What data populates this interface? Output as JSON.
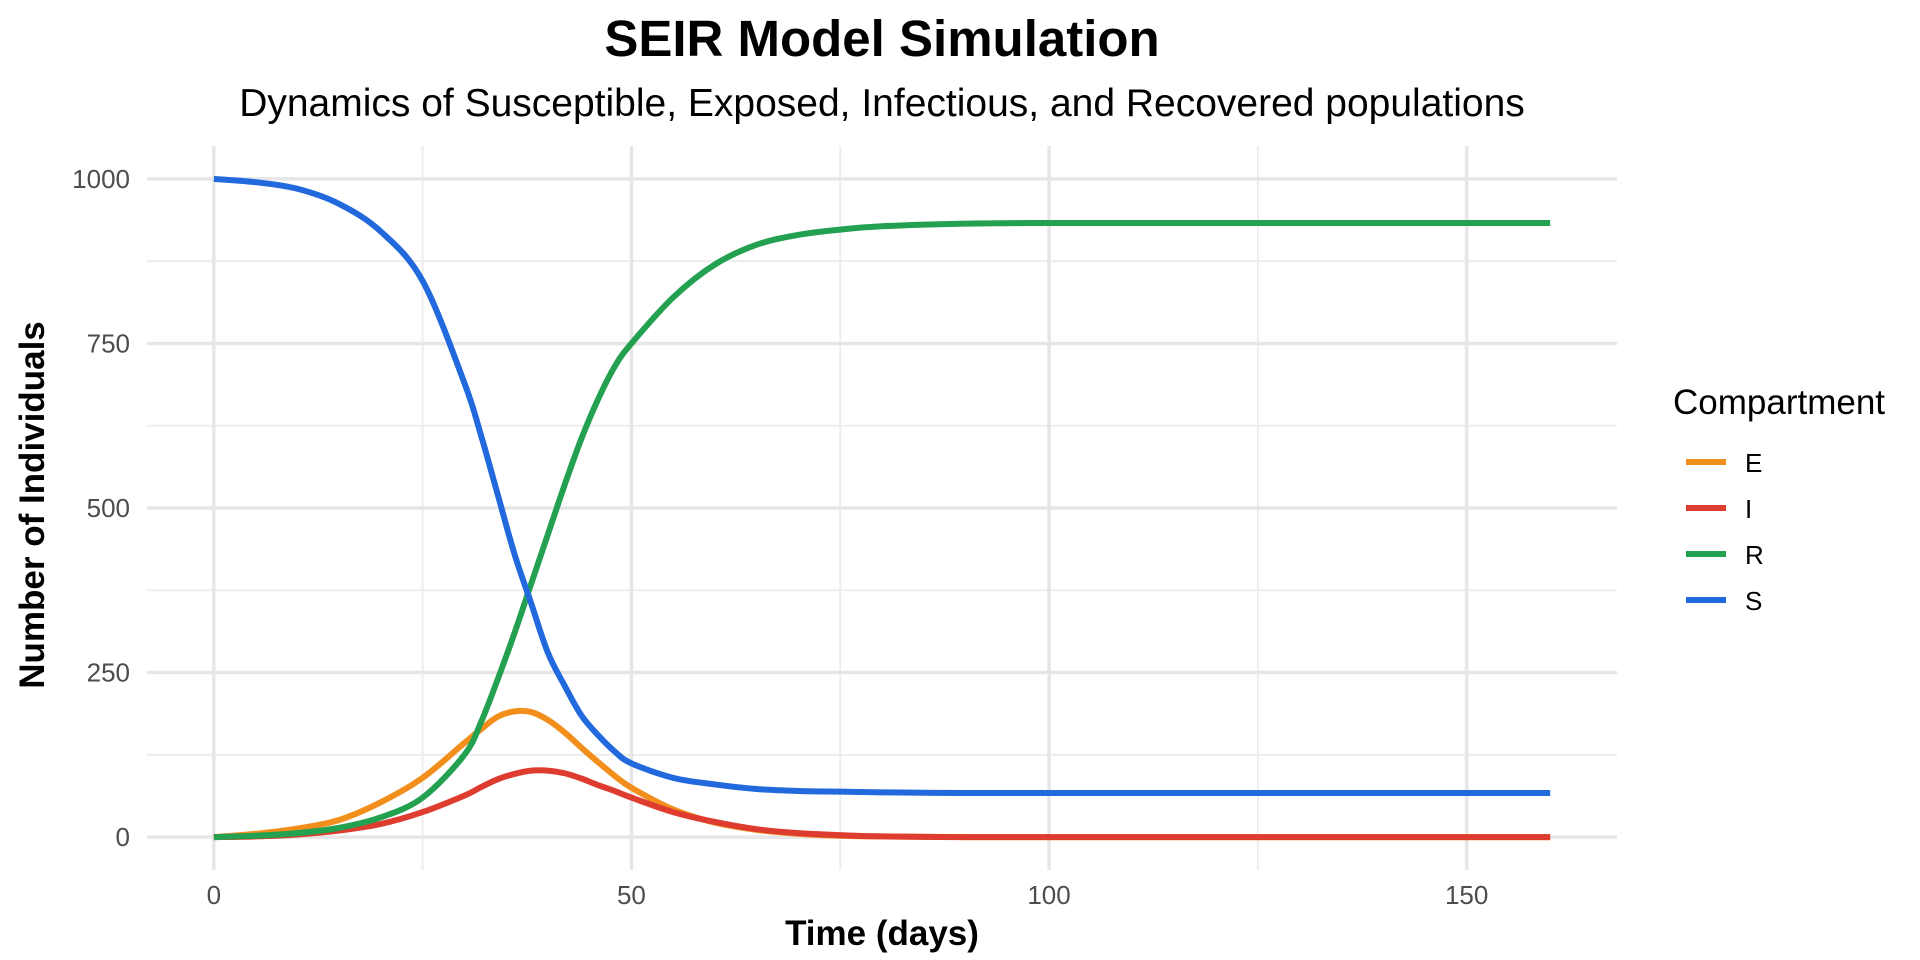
{
  "chart_data": {
    "type": "line",
    "title": "SEIR Model Simulation",
    "subtitle": "Dynamics of Susceptible, Exposed, Infectious, and Recovered populations",
    "xlabel": "Time (days)",
    "ylabel": "Number of Individuals",
    "xlim": [
      -8,
      168
    ],
    "ylim": [
      -50,
      1050
    ],
    "x_ticks": [
      0,
      50,
      100,
      150
    ],
    "y_ticks": [
      0,
      250,
      500,
      750,
      1000
    ],
    "x_tick_labels": [
      "0",
      "50",
      "100",
      "150"
    ],
    "y_tick_labels": [
      "0",
      "250",
      "500",
      "750",
      "1000"
    ],
    "grid": true,
    "legend": {
      "title": "Compartment",
      "position": "right"
    },
    "x": [
      0,
      5,
      10,
      15,
      20,
      25,
      30,
      32,
      34,
      36,
      38,
      40,
      42,
      44,
      46,
      48,
      50,
      55,
      60,
      65,
      70,
      75,
      80,
      90,
      100,
      110,
      120,
      130,
      140,
      150,
      160
    ],
    "series": [
      {
        "name": "E",
        "color": "#f28e1c",
        "values": [
          0,
          5,
          13,
          26,
          53,
          90,
          143,
          164,
          183,
          191,
          190,
          178,
          159,
          136,
          114,
          93,
          75,
          42,
          22,
          11,
          5,
          2,
          1,
          0,
          0,
          0,
          0,
          0,
          0,
          0,
          0
        ]
      },
      {
        "name": "I",
        "color": "#de3c2f",
        "values": [
          0,
          1,
          4,
          10,
          20,
          38,
          63,
          76,
          88,
          96,
          101,
          101,
          97,
          89,
          79,
          70,
          60,
          38,
          23,
          12,
          6,
          3,
          1,
          0,
          0,
          0,
          0,
          0,
          0,
          0,
          0
        ]
      },
      {
        "name": "R",
        "color": "#23a050",
        "values": [
          0,
          2,
          6,
          14,
          30,
          60,
          125,
          175,
          240,
          310,
          385,
          460,
          535,
          605,
          665,
          715,
          750,
          820,
          870,
          900,
          915,
          923,
          928,
          932,
          933,
          933,
          933,
          933,
          933,
          933,
          933
        ]
      },
      {
        "name": "S",
        "color": "#2169dc",
        "values": [
          1000,
          995,
          985,
          962,
          920,
          845,
          690,
          610,
          520,
          430,
          355,
          280,
          230,
          185,
          155,
          130,
          112,
          90,
          80,
          73,
          70,
          69,
          68,
          67,
          67,
          67,
          67,
          67,
          67,
          67,
          67
        ]
      }
    ]
  }
}
